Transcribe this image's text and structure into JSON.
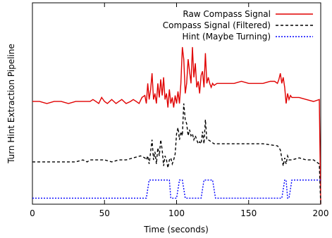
{
  "chart_data": {
    "type": "line",
    "title": "",
    "xlabel": "Time (seconds)",
    "ylabel": "Turn Hint Extraction Pipeline",
    "xlim": [
      0,
      200
    ],
    "x_ticks": [
      0,
      50,
      100,
      150,
      200
    ],
    "x_tick_labels": [
      "0",
      "50",
      "100",
      "150",
      "200"
    ],
    "ylim": [
      0,
      100
    ],
    "y_ticks_labeled": false,
    "grid": false,
    "legend_position": "top-right",
    "series": [
      {
        "name": "Raw Compass Signal",
        "color": "#e00000",
        "dash": "solid",
        "x": [
          0,
          5,
          10,
          15,
          20,
          25,
          30,
          35,
          40,
          42,
          44,
          46,
          48,
          50,
          52,
          55,
          58,
          60,
          62,
          65,
          68,
          70,
          72,
          74,
          76,
          78,
          79,
          80,
          81,
          82,
          83,
          84,
          85,
          86,
          87,
          88,
          89,
          90,
          91,
          92,
          93,
          94,
          95,
          96,
          97,
          98,
          99,
          100,
          101,
          102,
          103,
          104,
          105,
          106,
          107,
          108,
          109,
          110,
          111,
          112,
          113,
          114,
          115,
          116,
          117,
          118,
          119,
          120,
          121,
          122,
          123,
          124,
          125,
          126,
          128,
          130,
          135,
          140,
          145,
          150,
          155,
          160,
          165,
          168,
          170,
          171,
          172,
          173,
          174,
          175,
          176,
          177,
          178,
          179,
          180,
          185,
          190,
          195,
          199,
          200
        ],
        "y": [
          51,
          51,
          50,
          51,
          51,
          50,
          51,
          51,
          51,
          52,
          51,
          50,
          53,
          51,
          50,
          52,
          50,
          51,
          52,
          50,
          51,
          52,
          51,
          50,
          53,
          54,
          50,
          60,
          52,
          57,
          65,
          52,
          55,
          50,
          60,
          53,
          62,
          54,
          63,
          52,
          55,
          48,
          57,
          50,
          53,
          48,
          54,
          50,
          56,
          50,
          60,
          78,
          72,
          55,
          60,
          72,
          66,
          60,
          78,
          63,
          70,
          58,
          61,
          55,
          64,
          66,
          58,
          75,
          60,
          63,
          60,
          58,
          60,
          59,
          60,
          60,
          60,
          60,
          61,
          60,
          60,
          60,
          61,
          61,
          60,
          62,
          65,
          60,
          63,
          58,
          50,
          55,
          52,
          54,
          53,
          53,
          52,
          51,
          52,
          0
        ]
      },
      {
        "name": "Compass Signal (Filtered)",
        "color": "#000000",
        "dash": "dashed",
        "x": [
          0,
          10,
          20,
          30,
          35,
          38,
          40,
          50,
          55,
          60,
          65,
          70,
          75,
          78,
          79,
          80,
          81,
          82,
          83,
          84,
          85,
          86,
          87,
          88,
          89,
          90,
          91,
          92,
          93,
          94,
          95,
          96,
          97,
          98,
          99,
          100,
          101,
          102,
          103,
          104,
          105,
          106,
          107,
          108,
          109,
          110,
          111,
          112,
          113,
          114,
          115,
          116,
          117,
          118,
          119,
          120,
          121,
          122,
          124,
          126,
          130,
          140,
          150,
          160,
          170,
          172,
          174,
          175,
          176,
          177,
          178,
          180,
          185,
          190,
          195,
          199,
          200
        ],
        "y": [
          21,
          21,
          21,
          21,
          22,
          21,
          22,
          22,
          21,
          22,
          22,
          23,
          24,
          23,
          22,
          24,
          20,
          26,
          32,
          22,
          26,
          20,
          28,
          24,
          32,
          27,
          19,
          24,
          22,
          18,
          22,
          23,
          20,
          22,
          25,
          35,
          38,
          32,
          36,
          34,
          50,
          42,
          40,
          34,
          37,
          34,
          35,
          32,
          34,
          32,
          30,
          31,
          30,
          36,
          30,
          42,
          32,
          32,
          31,
          30,
          30,
          30,
          30,
          30,
          29,
          27,
          19,
          23,
          20,
          24,
          22,
          22,
          23,
          22,
          22,
          20,
          0
        ]
      },
      {
        "name": "Hint (Maybe Turning)",
        "color": "#0000ff",
        "dash": "dotted",
        "x": [
          0,
          79,
          81,
          95,
          96,
          100,
          102,
          104,
          106,
          117,
          119,
          125,
          127,
          173,
          175,
          176,
          177,
          178,
          180,
          200
        ],
        "y": [
          3,
          3,
          12,
          12,
          3,
          3,
          12,
          12,
          3,
          3,
          12,
          12,
          3,
          3,
          12,
          12,
          3,
          3,
          12,
          12
        ]
      }
    ]
  }
}
